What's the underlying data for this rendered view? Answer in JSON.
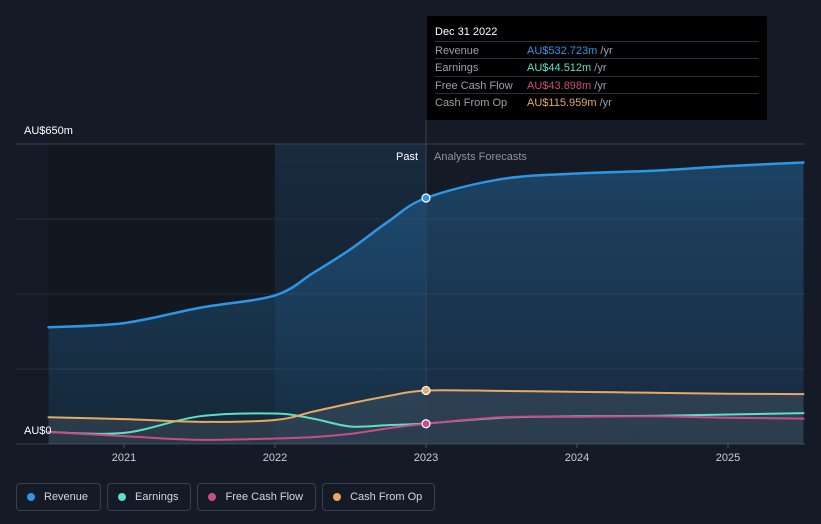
{
  "chart_data": {
    "type": "line",
    "y_top_label": "AU$650m",
    "y_bottom_label": "AU$0",
    "ylim": [
      0,
      650
    ],
    "xlim": [
      2020.5,
      2025.5
    ],
    "x_ticks": [
      {
        "value": 2021,
        "label": "2021"
      },
      {
        "value": 2022,
        "label": "2022"
      },
      {
        "value": 2023,
        "label": "2023"
      },
      {
        "value": 2024,
        "label": "2024"
      },
      {
        "value": 2025,
        "label": "2025"
      }
    ],
    "past_label": "Past",
    "forecast_label": "Analysts Forecasts",
    "forecast_start": 2023.0,
    "past_shade_start": 2022.0,
    "series": [
      {
        "name": "Revenue",
        "color": "#2d96e6",
        "points": [
          [
            2020.5,
            253
          ],
          [
            2021.0,
            262
          ],
          [
            2021.5,
            295
          ],
          [
            2022.0,
            322
          ],
          [
            2022.25,
            370
          ],
          [
            2022.5,
            422
          ],
          [
            2022.75,
            482
          ],
          [
            2023.0,
            533
          ],
          [
            2023.5,
            574
          ],
          [
            2024.0,
            586
          ],
          [
            2024.5,
            592
          ],
          [
            2025.0,
            602
          ],
          [
            2025.5,
            610
          ]
        ]
      },
      {
        "name": "Earnings",
        "color": "#5de0c5",
        "points": [
          [
            2020.5,
            26
          ],
          [
            2021.0,
            24
          ],
          [
            2021.5,
            60
          ],
          [
            2022.0,
            66
          ],
          [
            2022.25,
            55
          ],
          [
            2022.5,
            38
          ],
          [
            2022.75,
            41
          ],
          [
            2023.0,
            44.5
          ],
          [
            2023.5,
            57
          ],
          [
            2024.0,
            60
          ],
          [
            2024.5,
            61
          ],
          [
            2025.0,
            64
          ],
          [
            2025.5,
            67
          ]
        ]
      },
      {
        "name": "Free Cash Flow",
        "color": "#c94d84",
        "points": [
          [
            2020.5,
            26
          ],
          [
            2021.0,
            17
          ],
          [
            2021.5,
            9
          ],
          [
            2022.0,
            12
          ],
          [
            2022.25,
            15
          ],
          [
            2022.5,
            22
          ],
          [
            2022.75,
            34
          ],
          [
            2023.0,
            43.9
          ],
          [
            2023.5,
            58
          ],
          [
            2024.0,
            59
          ],
          [
            2024.5,
            60
          ],
          [
            2025.0,
            57
          ],
          [
            2025.5,
            55
          ]
        ]
      },
      {
        "name": "Cash From Op",
        "color": "#e8a961",
        "points": [
          [
            2020.5,
            58
          ],
          [
            2021.0,
            54
          ],
          [
            2021.5,
            48
          ],
          [
            2022.0,
            52
          ],
          [
            2022.25,
            70
          ],
          [
            2022.5,
            88
          ],
          [
            2022.75,
            104
          ],
          [
            2023.0,
            116
          ],
          [
            2023.5,
            115
          ],
          [
            2024.0,
            113
          ],
          [
            2024.5,
            111
          ],
          [
            2025.0,
            109
          ],
          [
            2025.5,
            108
          ]
        ]
      }
    ]
  },
  "tooltip": {
    "date": "Dec 31 2022",
    "rows": [
      {
        "label": "Revenue",
        "value": "AU$532.723m",
        "unit": "/yr",
        "color": "#2d96e6"
      },
      {
        "label": "Earnings",
        "value": "AU$44.512m",
        "unit": "/yr",
        "color": "#5de0c5"
      },
      {
        "label": "Free Cash Flow",
        "value": "AU$43.898m",
        "unit": "/yr",
        "color": "#c94d84"
      },
      {
        "label": "Cash From Op",
        "value": "AU$115.959m",
        "unit": "/yr",
        "color": "#e8a961"
      }
    ]
  },
  "legend": [
    {
      "label": "Revenue",
      "color": "#2d96e6"
    },
    {
      "label": "Earnings",
      "color": "#5de0c5"
    },
    {
      "label": "Free Cash Flow",
      "color": "#c94d84"
    },
    {
      "label": "Cash From Op",
      "color": "#e8a961"
    }
  ]
}
